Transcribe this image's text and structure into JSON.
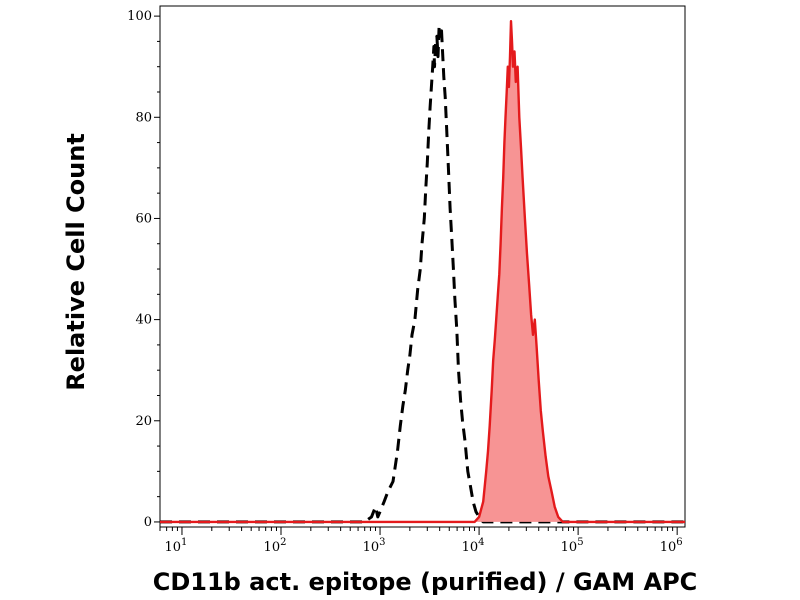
{
  "chart_data": {
    "type": "area",
    "title": "",
    "xlabel": "CD11b act. epitope (purified) / GAM APC",
    "ylabel": "Relative Cell Count",
    "x_scale": "log",
    "xlim": [
      6,
      1200000
    ],
    "ylim": [
      -1,
      102
    ],
    "x_ticks": [
      {
        "base": "10",
        "exp": "1",
        "value": 10
      },
      {
        "base": "10",
        "exp": "2",
        "value": 100
      },
      {
        "base": "10",
        "exp": "3",
        "value": 1000
      },
      {
        "base": "10",
        "exp": "4",
        "value": 10000
      },
      {
        "base": "10",
        "exp": "5",
        "value": 100000
      },
      {
        "base": "10",
        "exp": "6",
        "value": 1000000
      }
    ],
    "y_ticks": [
      "0",
      "20",
      "40",
      "60",
      "80",
      "100"
    ],
    "series": [
      {
        "role": "isotype-control",
        "style": "dashed",
        "color": "#000000",
        "points": [
          [
            6,
            0
          ],
          [
            700,
            0
          ],
          [
            820,
            1
          ],
          [
            900,
            3
          ],
          [
            950,
            1
          ],
          [
            1000,
            2
          ],
          [
            1100,
            4
          ],
          [
            1200,
            6
          ],
          [
            1350,
            8
          ],
          [
            1500,
            14
          ],
          [
            1600,
            19
          ],
          [
            1700,
            23
          ],
          [
            1800,
            26
          ],
          [
            1900,
            30
          ],
          [
            2000,
            33
          ],
          [
            2100,
            37
          ],
          [
            2250,
            40
          ],
          [
            2400,
            46
          ],
          [
            2550,
            50
          ],
          [
            2650,
            55
          ],
          [
            2800,
            60
          ],
          [
            2900,
            66
          ],
          [
            3000,
            71
          ],
          [
            3100,
            77
          ],
          [
            3200,
            82
          ],
          [
            3300,
            86
          ],
          [
            3400,
            90
          ],
          [
            3500,
            94
          ],
          [
            3550,
            90
          ],
          [
            3650,
            95
          ],
          [
            3750,
            96
          ],
          [
            3850,
            92
          ],
          [
            3950,
            98
          ],
          [
            4050,
            96
          ],
          [
            4150,
            98
          ],
          [
            4250,
            94
          ],
          [
            4400,
            88
          ],
          [
            4550,
            84
          ],
          [
            4700,
            78
          ],
          [
            4900,
            70
          ],
          [
            5100,
            62
          ],
          [
            5300,
            56
          ],
          [
            5500,
            50
          ],
          [
            5700,
            44
          ],
          [
            5950,
            38
          ],
          [
            6200,
            30
          ],
          [
            6500,
            24
          ],
          [
            6800,
            20
          ],
          [
            7200,
            16
          ],
          [
            7700,
            10
          ],
          [
            8200,
            7
          ],
          [
            8700,
            4
          ],
          [
            9300,
            2
          ],
          [
            10000,
            1
          ],
          [
            11000,
            0
          ],
          [
            1200000,
            0
          ]
        ]
      },
      {
        "role": "stained",
        "style": "solid-filled",
        "color": "#e41a1c",
        "fill": "#f79494",
        "points": [
          [
            6,
            0
          ],
          [
            9000,
            0
          ],
          [
            10000,
            1
          ],
          [
            11000,
            4
          ],
          [
            11800,
            10
          ],
          [
            12300,
            14
          ],
          [
            12800,
            19
          ],
          [
            13400,
            26
          ],
          [
            13900,
            32
          ],
          [
            14400,
            36
          ],
          [
            14900,
            40
          ],
          [
            15500,
            45
          ],
          [
            16000,
            49
          ],
          [
            16500,
            55
          ],
          [
            17000,
            62
          ],
          [
            17500,
            68
          ],
          [
            18000,
            75
          ],
          [
            18500,
            80
          ],
          [
            19000,
            85
          ],
          [
            19500,
            90
          ],
          [
            20000,
            86
          ],
          [
            20500,
            92
          ],
          [
            21000,
            99
          ],
          [
            21500,
            95
          ],
          [
            22000,
            90
          ],
          [
            22800,
            93
          ],
          [
            23500,
            87
          ],
          [
            24500,
            90
          ],
          [
            25500,
            80
          ],
          [
            26500,
            74
          ],
          [
            27500,
            68
          ],
          [
            29000,
            60
          ],
          [
            30500,
            53
          ],
          [
            32000,
            47
          ],
          [
            33500,
            41
          ],
          [
            35000,
            37
          ],
          [
            36500,
            40
          ],
          [
            38000,
            35
          ],
          [
            40000,
            28
          ],
          [
            42000,
            22
          ],
          [
            44000,
            18
          ],
          [
            47000,
            13
          ],
          [
            50000,
            9
          ],
          [
            54000,
            6
          ],
          [
            58000,
            3
          ],
          [
            63000,
            1
          ],
          [
            70000,
            0
          ],
          [
            1200000,
            0
          ]
        ]
      }
    ],
    "grid": false,
    "legend": "none"
  }
}
